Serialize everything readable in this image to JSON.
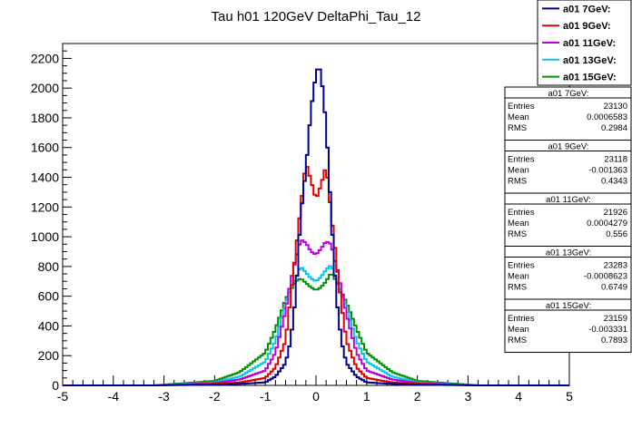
{
  "chart_data": {
    "type": "line",
    "title": "Tau h01 120GeV DeltaPhi_Tau_12",
    "xlabel": "",
    "ylabel": "",
    "xlim": [
      -5,
      5
    ],
    "ylim": [
      0,
      2300
    ],
    "x_ticks": [
      -5,
      -4,
      -3,
      -2,
      -1,
      0,
      1,
      2,
      3,
      4,
      5
    ],
    "y_ticks": [
      0,
      200,
      400,
      600,
      800,
      1000,
      1200,
      1400,
      1600,
      1800,
      2000,
      2200
    ],
    "x_ticks_text": [
      "-5",
      "-4",
      "-3",
      "-2",
      "-1",
      "0",
      "1",
      "2",
      "3",
      "4",
      "5"
    ],
    "y_ticks_text": [
      "0",
      "200",
      "400",
      "600",
      "800",
      "1000",
      "1200",
      "1400",
      "1600",
      "1800",
      "2000",
      "2200"
    ],
    "grid": false,
    "histogram": true,
    "legend_position": "top-right",
    "series": [
      {
        "name": "a01 7GeV:",
        "color": "#00008b",
        "x": [
          -3.2,
          -2.0,
          -1.5,
          -1.0,
          -0.8,
          -0.6,
          -0.5,
          -0.4,
          -0.3,
          -0.2,
          -0.1,
          0.0,
          0.05,
          0.1,
          0.2,
          0.3,
          0.4,
          0.5,
          0.6,
          0.8,
          1.0,
          1.5,
          2.0,
          3.2
        ],
        "y": [
          0,
          5,
          10,
          20,
          60,
          150,
          300,
          600,
          1150,
          1450,
          1850,
          2100,
          2150,
          2100,
          1750,
          1150,
          600,
          300,
          150,
          60,
          20,
          10,
          5,
          0
        ],
        "stats": {
          "title": "a01 7GeV:",
          "entries": "23130",
          "mean": "0.0006583",
          "rms": "0.2984"
        }
      },
      {
        "name": "a01 9GeV:",
        "color": "#e00000",
        "x": [
          -3.2,
          -2.0,
          -1.5,
          -1.0,
          -0.8,
          -0.6,
          -0.5,
          -0.4,
          -0.3,
          -0.2,
          -0.1,
          0.0,
          0.1,
          0.2,
          0.3,
          0.4,
          0.5,
          0.6,
          0.8,
          1.0,
          1.5,
          2.0,
          3.2
        ],
        "y": [
          0,
          10,
          20,
          50,
          120,
          300,
          600,
          900,
          1200,
          1500,
          1380,
          1250,
          1350,
          1480,
          1150,
          850,
          550,
          300,
          120,
          50,
          20,
          10,
          0
        ],
        "stats": {
          "title": "a01 9GeV:",
          "entries": "23118",
          "mean": "-0.001363",
          "rms": "0.4343"
        }
      },
      {
        "name": "a01 11GeV:",
        "color": "#c000e0",
        "x": [
          -3.2,
          -2.0,
          -1.5,
          -1.0,
          -0.8,
          -0.6,
          -0.5,
          -0.4,
          -0.3,
          -0.2,
          -0.1,
          0.0,
          0.1,
          0.2,
          0.3,
          0.4,
          0.5,
          0.6,
          0.8,
          1.0,
          1.5,
          2.0,
          3.2
        ],
        "y": [
          0,
          15,
          40,
          100,
          220,
          500,
          700,
          850,
          980,
          960,
          900,
          880,
          920,
          970,
          950,
          800,
          650,
          480,
          220,
          100,
          40,
          15,
          0
        ],
        "stats": {
          "title": "a01 11GeV:",
          "entries": "21926",
          "mean": "0.0004279",
          "rms": "0.556"
        }
      },
      {
        "name": "a01 13GeV:",
        "color": "#00c8e6",
        "x": [
          -3.2,
          -2.0,
          -1.5,
          -1.0,
          -0.8,
          -0.6,
          -0.5,
          -0.4,
          -0.3,
          -0.2,
          -0.1,
          0.0,
          0.1,
          0.2,
          0.3,
          0.4,
          0.5,
          0.6,
          0.8,
          1.0,
          1.5,
          2.0,
          3.2
        ],
        "y": [
          0,
          20,
          60,
          160,
          300,
          550,
          650,
          720,
          800,
          760,
          720,
          700,
          730,
          780,
          810,
          720,
          620,
          520,
          300,
          160,
          60,
          20,
          0
        ],
        "stats": {
          "title": "a01 13GeV:",
          "entries": "23283",
          "mean": "-0.0008623",
          "rms": "0.6749"
        }
      },
      {
        "name": "a01 15GeV:",
        "color": "#009000",
        "x": [
          -3.2,
          -2.0,
          -1.5,
          -1.0,
          -0.8,
          -0.6,
          -0.5,
          -0.4,
          -0.3,
          -0.2,
          -0.1,
          0.0,
          0.1,
          0.2,
          0.3,
          0.4,
          0.5,
          0.6,
          0.8,
          1.0,
          1.5,
          2.0,
          3.2
        ],
        "y": [
          0,
          30,
          90,
          220,
          380,
          580,
          640,
          700,
          720,
          690,
          660,
          640,
          660,
          700,
          760,
          700,
          630,
          560,
          380,
          220,
          90,
          30,
          0
        ],
        "stats": {
          "title": "a01 15GeV:",
          "entries": "23159",
          "mean": "-0.003331",
          "rms": "0.7893"
        }
      }
    ],
    "stats_labels": {
      "entries": "Entries",
      "mean": "Mean",
      "rms": "RMS"
    }
  }
}
